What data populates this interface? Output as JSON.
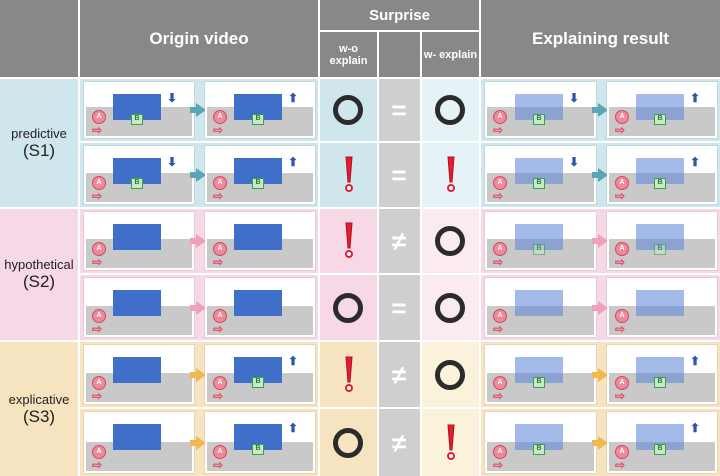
{
  "header": {
    "origin_video": "Origin video",
    "surprise": "Surprise",
    "wo_explain": "w-o explain",
    "w_explain": "w- explain",
    "explaining_result": "Explaining result"
  },
  "groups": [
    {
      "label": "predictive",
      "code": "(S1)",
      "bg": "#cfe6ec",
      "light": "#e6f3f6",
      "arrow": "#5aa6b4"
    },
    {
      "label": "hypothetical",
      "code": "(S2)",
      "bg": "#f6d8e6",
      "light": "#fbeaf2",
      "arrow": "#f0a0b8"
    },
    {
      "label": "explicative",
      "code": "(S3)",
      "bg": "#f6e3bf",
      "light": "#fbf2dc",
      "arrow": "#f0b850"
    }
  ],
  "rows": [
    {
      "wo": "O",
      "rel": "=",
      "w": "O"
    },
    {
      "wo": "!",
      "rel": "=",
      "w": "!"
    },
    {
      "wo": "!",
      "rel": "≠",
      "w": "O"
    },
    {
      "wo": "O",
      "rel": "=",
      "w": "O"
    },
    {
      "wo": "!",
      "rel": "≠",
      "w": "O"
    },
    {
      "wo": "O",
      "rel": "≠",
      "w": "!"
    }
  ],
  "badges": {
    "a": "A",
    "b": "B"
  }
}
